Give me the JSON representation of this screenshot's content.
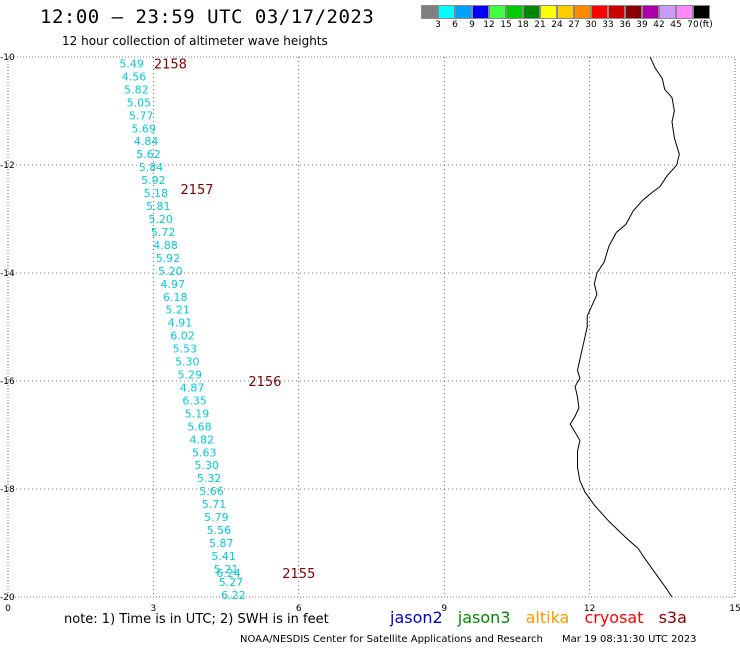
{
  "title": "12:00 – 23:59 UTC 03/17/2023",
  "subtitle": "12 hour collection of altimeter wave heights",
  "legend": {
    "unit": "(ft)",
    "colors": [
      "#808080",
      "#00ffff",
      "#00a0ff",
      "#0000ff",
      "#40ff40",
      "#00cc00",
      "#008800",
      "#ffff00",
      "#ffcc00",
      "#ff8c00",
      "#ff0000",
      "#cc0000",
      "#880000",
      "#aa00aa",
      "#cc99ff",
      "#ff88ff",
      "#000000"
    ],
    "labels": [
      "3",
      "6",
      "9",
      "12",
      "15",
      "18",
      "21",
      "24",
      "27",
      "30",
      "33",
      "36",
      "39",
      "42",
      "45",
      "70"
    ]
  },
  "map": {
    "x_ticks": [
      "0",
      "3",
      "6",
      "9",
      "12",
      "15"
    ],
    "y_ticks": [
      "-10",
      "-12",
      "-14",
      "-16",
      "-18",
      "-20"
    ],
    "x_range": [
      0,
      15
    ],
    "y_range": [
      -20,
      -10
    ],
    "grid": true,
    "coastline_color": "#000000",
    "wave_color": "#00ccdd",
    "pass_color": "#800000",
    "wave_heights": [
      {
        "lon": 2.55,
        "lat": -10.12,
        "value": "5.49"
      },
      {
        "lon": 2.6,
        "lat": -10.36,
        "value": "4.56"
      },
      {
        "lon": 2.65,
        "lat": -10.6,
        "value": "5.82"
      },
      {
        "lon": 2.7,
        "lat": -10.84,
        "value": "5.05"
      },
      {
        "lon": 2.75,
        "lat": -11.08,
        "value": "5.77"
      },
      {
        "lon": 2.8,
        "lat": -11.32,
        "value": "5.69"
      },
      {
        "lon": 2.85,
        "lat": -11.56,
        "value": "4.84"
      },
      {
        "lon": 2.9,
        "lat": -11.8,
        "value": "5.62"
      },
      {
        "lon": 2.95,
        "lat": -12.04,
        "value": "5.84"
      },
      {
        "lon": 3.0,
        "lat": -12.28,
        "value": "5.92"
      },
      {
        "lon": 3.05,
        "lat": -12.52,
        "value": "5.18"
      },
      {
        "lon": 3.1,
        "lat": -12.76,
        "value": "5.81"
      },
      {
        "lon": 3.15,
        "lat": -13.0,
        "value": "5.20"
      },
      {
        "lon": 3.2,
        "lat": -13.24,
        "value": "5.72"
      },
      {
        "lon": 3.25,
        "lat": -13.48,
        "value": "4.88"
      },
      {
        "lon": 3.3,
        "lat": -13.72,
        "value": "5.92"
      },
      {
        "lon": 3.35,
        "lat": -13.96,
        "value": "5.20"
      },
      {
        "lon": 3.4,
        "lat": -14.2,
        "value": "4.97"
      },
      {
        "lon": 3.45,
        "lat": -14.44,
        "value": "6.18"
      },
      {
        "lon": 3.5,
        "lat": -14.68,
        "value": "5.21"
      },
      {
        "lon": 3.55,
        "lat": -14.92,
        "value": "4.91"
      },
      {
        "lon": 3.6,
        "lat": -15.16,
        "value": "6.02"
      },
      {
        "lon": 3.65,
        "lat": -15.4,
        "value": "5.53"
      },
      {
        "lon": 3.7,
        "lat": -15.64,
        "value": "5.30"
      },
      {
        "lon": 3.75,
        "lat": -15.88,
        "value": "5.29"
      },
      {
        "lon": 3.8,
        "lat": -16.12,
        "value": "4.87"
      },
      {
        "lon": 3.85,
        "lat": -16.36,
        "value": "6.35"
      },
      {
        "lon": 3.9,
        "lat": -16.6,
        "value": "5.19"
      },
      {
        "lon": 3.95,
        "lat": -16.84,
        "value": "5.68"
      },
      {
        "lon": 4.0,
        "lat": -17.08,
        "value": "4.82"
      },
      {
        "lon": 4.05,
        "lat": -17.32,
        "value": "5.63"
      },
      {
        "lon": 4.1,
        "lat": -17.56,
        "value": "5.30"
      },
      {
        "lon": 4.15,
        "lat": -17.8,
        "value": "5.32"
      },
      {
        "lon": 4.2,
        "lat": -18.04,
        "value": "5.66"
      },
      {
        "lon": 4.25,
        "lat": -18.28,
        "value": "5.71"
      },
      {
        "lon": 4.3,
        "lat": -18.52,
        "value": "5.79"
      },
      {
        "lon": 4.35,
        "lat": -18.76,
        "value": "5.56"
      },
      {
        "lon": 4.4,
        "lat": -19.0,
        "value": "5.87"
      },
      {
        "lon": 4.45,
        "lat": -19.24,
        "value": "5.41"
      },
      {
        "lon": 4.5,
        "lat": -19.48,
        "value": "5.21"
      },
      {
        "lon": 4.55,
        "lat": -19.56,
        "value": "6.24"
      },
      {
        "lon": 4.6,
        "lat": -19.72,
        "value": "5.27"
      },
      {
        "lon": 4.65,
        "lat": -19.96,
        "value": "6.22"
      }
    ],
    "pass_labels": [
      {
        "lon": 3.35,
        "lat": -10.12,
        "value": "2158"
      },
      {
        "lon": 3.9,
        "lat": -12.44,
        "value": "2157"
      },
      {
        "lon": 5.3,
        "lat": -16.0,
        "value": "2156"
      },
      {
        "lon": 6.0,
        "lat": -19.56,
        "value": "2155"
      }
    ],
    "coastline": [
      [
        13.25,
        -10.0
      ],
      [
        13.35,
        -10.2
      ],
      [
        13.5,
        -10.4
      ],
      [
        13.55,
        -10.6
      ],
      [
        13.7,
        -10.75
      ],
      [
        13.75,
        -11.0
      ],
      [
        13.7,
        -11.2
      ],
      [
        13.75,
        -11.5
      ],
      [
        13.85,
        -11.8
      ],
      [
        13.8,
        -12.0
      ],
      [
        13.6,
        -12.2
      ],
      [
        13.45,
        -12.4
      ],
      [
        13.3,
        -12.5
      ],
      [
        13.1,
        -12.65
      ],
      [
        12.9,
        -12.85
      ],
      [
        12.75,
        -13.1
      ],
      [
        12.55,
        -13.25
      ],
      [
        12.4,
        -13.5
      ],
      [
        12.3,
        -13.8
      ],
      [
        12.15,
        -14.0
      ],
      [
        12.1,
        -14.2
      ],
      [
        12.15,
        -14.4
      ],
      [
        12.05,
        -14.6
      ],
      [
        11.95,
        -14.8
      ],
      [
        11.95,
        -15.0
      ],
      [
        11.9,
        -15.2
      ],
      [
        11.85,
        -15.4
      ],
      [
        11.8,
        -15.6
      ],
      [
        11.75,
        -15.8
      ],
      [
        11.8,
        -15.95
      ],
      [
        11.7,
        -16.1
      ],
      [
        11.75,
        -16.3
      ],
      [
        11.78,
        -16.5
      ],
      [
        11.7,
        -16.65
      ],
      [
        11.6,
        -16.8
      ],
      [
        11.7,
        -16.95
      ],
      [
        11.8,
        -17.1
      ],
      [
        11.75,
        -17.3
      ],
      [
        11.75,
        -17.6
      ],
      [
        11.8,
        -17.85
      ],
      [
        11.9,
        -18.05
      ],
      [
        12.1,
        -18.3
      ],
      [
        12.4,
        -18.6
      ],
      [
        12.75,
        -18.9
      ],
      [
        13.0,
        -19.1
      ],
      [
        13.15,
        -19.3
      ],
      [
        13.35,
        -19.55
      ],
      [
        13.55,
        -19.8
      ],
      [
        13.7,
        -20.0
      ]
    ]
  },
  "note": "note:  1) Time is in UTC;  2) SWH is in feet",
  "satellites": [
    {
      "name": "jason2",
      "color": "#0000cc"
    },
    {
      "name": "jason3",
      "color": "#008800"
    },
    {
      "name": "altika",
      "color": "#ff9900"
    },
    {
      "name": "cryosat",
      "color": "#ff0000"
    },
    {
      "name": "s3a",
      "color": "#880000"
    }
  ],
  "footer": {
    "org": "NOAA/NESDIS Center for Satellite Applications and Research",
    "timestamp": "Mar 19 08:31:30 UTC 2023"
  }
}
